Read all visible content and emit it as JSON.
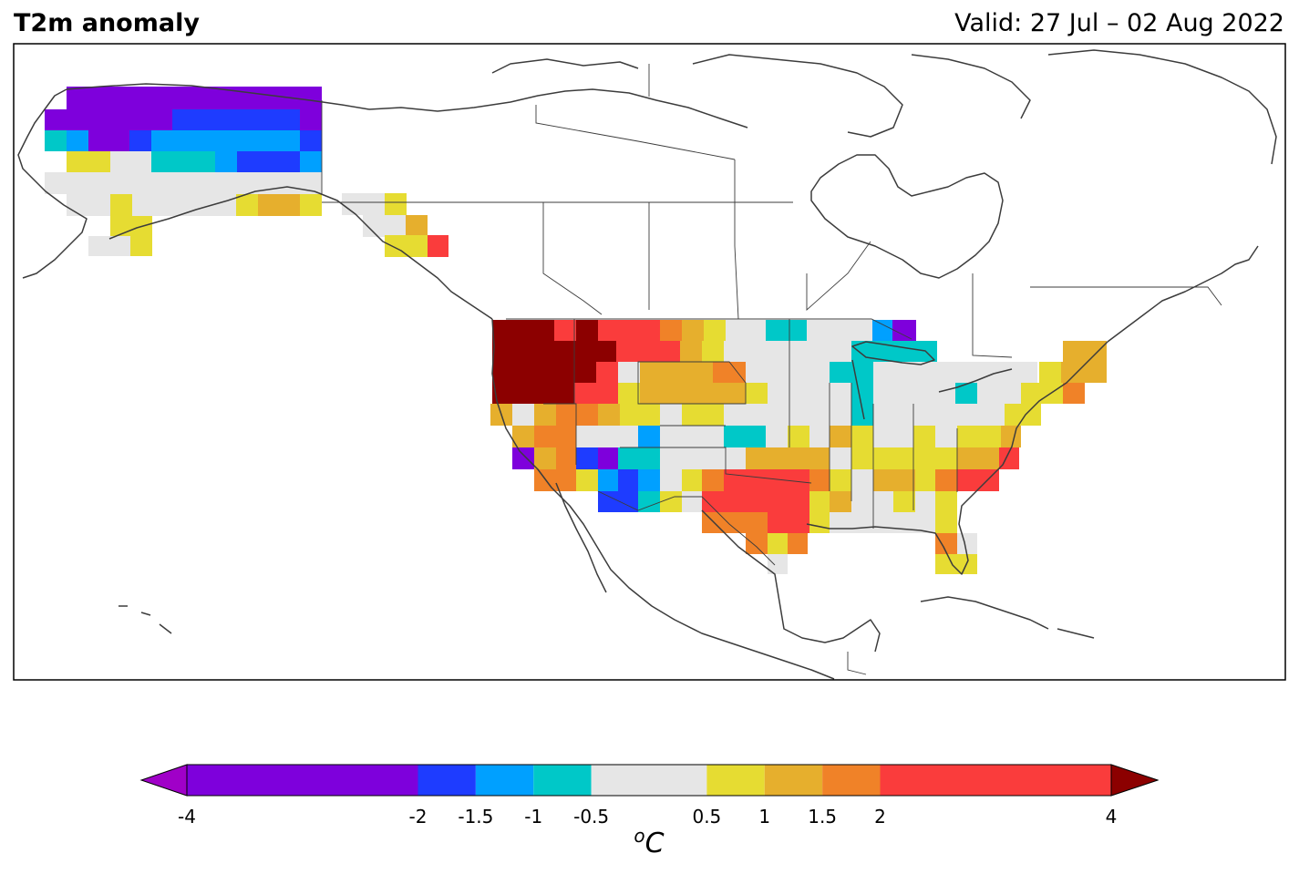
{
  "title": "T2m anomaly",
  "valid": "Valid: 27 Jul – 02 Aug 2022",
  "colorbar": {
    "ticks": [
      "-4",
      "-2",
      "-1.5",
      "-1",
      "-0.5",
      "0.5",
      "1",
      "1.5",
      "2",
      "4"
    ],
    "unit_base": "o",
    "unit_main": "C",
    "bins": [
      {
        "min": -4,
        "max": -2,
        "color": "#7e00dc"
      },
      {
        "min": -2,
        "max": -1.5,
        "color": "#1e3cff"
      },
      {
        "min": -1.5,
        "max": -1,
        "color": "#00a0ff"
      },
      {
        "min": -1,
        "max": -0.5,
        "color": "#00c8c8"
      },
      {
        "min": -0.5,
        "max": 0.5,
        "color": "#e6e6e6"
      },
      {
        "min": 0.5,
        "max": 1,
        "color": "#e6dc32"
      },
      {
        "min": 1,
        "max": 1.5,
        "color": "#e6af2d"
      },
      {
        "min": 1.5,
        "max": 2,
        "color": "#f08228"
      },
      {
        "min": 2,
        "max": 4,
        "color": "#fa3c3c"
      }
    ],
    "under_color": "#a000c8",
    "over_color": "#8c0000"
  },
  "colors": {
    "coast": "#3c3c3c",
    "border": "#3c3c3c"
  }
}
